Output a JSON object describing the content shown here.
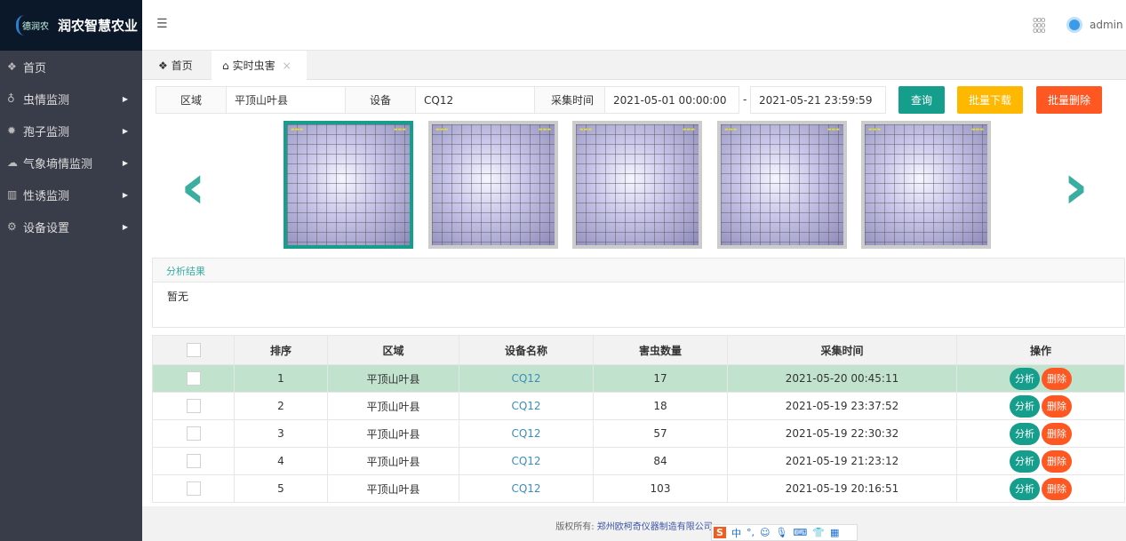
{
  "app": {
    "logo_mark": "德润农",
    "title": "润农智慧农业",
    "user": "admin"
  },
  "sidebar": {
    "items": [
      {
        "label": "首页",
        "icon": "layers-icon"
      },
      {
        "label": "虫情监测",
        "icon": "bug-icon"
      },
      {
        "label": "孢子监测",
        "icon": "spore-icon"
      },
      {
        "label": "气象墒情监测",
        "icon": "weather-icon"
      },
      {
        "label": "性诱监测",
        "icon": "trap-icon"
      },
      {
        "label": "设备设置",
        "icon": "gear-icon"
      }
    ]
  },
  "tabs": [
    {
      "label": "首页"
    },
    {
      "label": "实时虫害"
    }
  ],
  "filter": {
    "area_label": "区域",
    "area_value": "平顶山叶县",
    "device_label": "设备",
    "device_value": "CQ12",
    "time_label": "采集时间",
    "start": "2021-05-01 00:00:00",
    "sep": "-",
    "end": "2021-05-21 23:59:59",
    "query": "查询",
    "download": "批量下载",
    "delete": "批量删除"
  },
  "colors": {
    "accent": "#169e8c",
    "warn": "#ffb800",
    "danger": "#ff5722",
    "selected_row": "#c1e2cc"
  },
  "analysis": {
    "title": "分析结果",
    "body": "暂无"
  },
  "table": {
    "headers": [
      "排序",
      "区域",
      "设备名称",
      "害虫数量",
      "采集时间",
      "操作"
    ],
    "analyze": "分析",
    "delete": "删除",
    "rows": [
      [
        "1",
        "平顶山叶县",
        "CQ12",
        "17",
        "2021-05-20 00:45:11"
      ],
      [
        "2",
        "平顶山叶县",
        "CQ12",
        "18",
        "2021-05-19 23:37:52"
      ],
      [
        "3",
        "平顶山叶县",
        "CQ12",
        "57",
        "2021-05-19 22:30:32"
      ],
      [
        "4",
        "平顶山叶县",
        "CQ12",
        "84",
        "2021-05-19 21:23:12"
      ],
      [
        "5",
        "平顶山叶县",
        "CQ12",
        "103",
        "2021-05-19 20:16:51"
      ]
    ]
  },
  "footer": {
    "prefix": "版权所有: ",
    "company": "郑州欧柯奇仪器制造有限公司"
  },
  "ime": {
    "lang": "中"
  }
}
